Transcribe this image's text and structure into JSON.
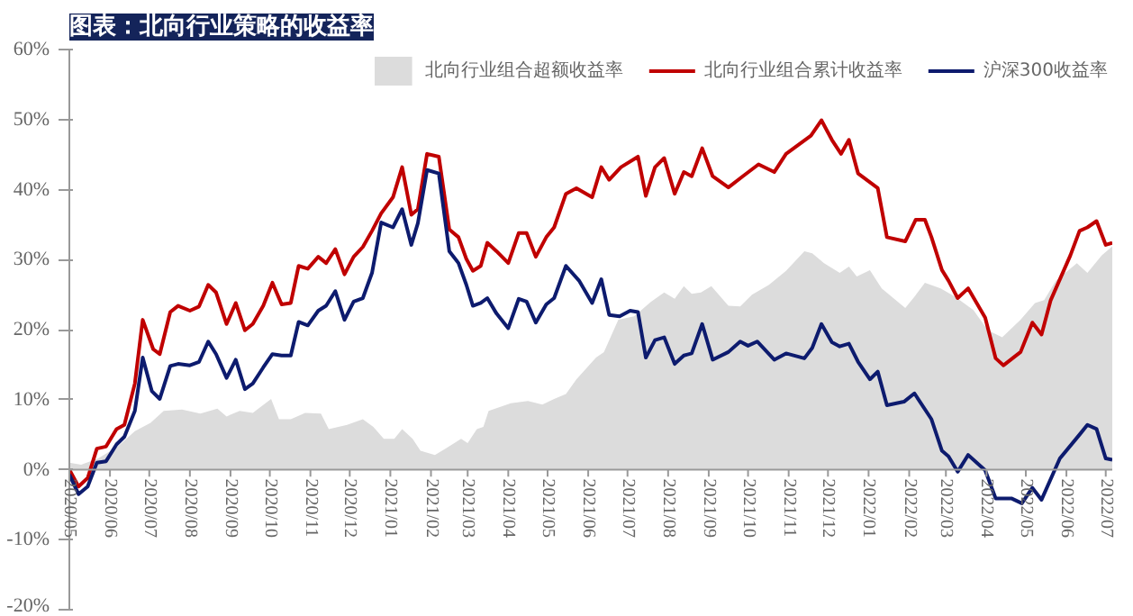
{
  "chart_data": {
    "type": "line",
    "title": "图表：北向行业策略的收益率",
    "xlim": [
      "2020-05-01",
      "2022-07-06"
    ],
    "xticks": [
      {
        "value": "2020-05",
        "label": "2020/05"
      },
      {
        "value": "2020-06",
        "label": "2020/06"
      },
      {
        "value": "2020-07",
        "label": "2020/07"
      },
      {
        "value": "2020-08",
        "label": "2020/08"
      },
      {
        "value": "2020-09",
        "label": "2020/09"
      },
      {
        "value": "2020-10",
        "label": "2020/10"
      },
      {
        "value": "2020-11",
        "label": "2020/11"
      },
      {
        "value": "2020-12",
        "label": "2020/12"
      },
      {
        "value": "2021-01",
        "label": "2021/01"
      },
      {
        "value": "2021-02",
        "label": "2021/02"
      },
      {
        "value": "2021-03",
        "label": "2021/03"
      },
      {
        "value": "2021-04",
        "label": "2021/04"
      },
      {
        "value": "2021-05",
        "label": "2021/05"
      },
      {
        "value": "2021-06",
        "label": "2021/06"
      },
      {
        "value": "2021-07",
        "label": "2021/07"
      },
      {
        "value": "2021-08",
        "label": "2021/08"
      },
      {
        "value": "2021-09",
        "label": "2021/09"
      },
      {
        "value": "2021-10",
        "label": "2021/10"
      },
      {
        "value": "2021-11",
        "label": "2021/11"
      },
      {
        "value": "2021-12",
        "label": "2021/12"
      },
      {
        "value": "2022-01",
        "label": "2022/01"
      },
      {
        "value": "2022-02",
        "label": "2022/02"
      },
      {
        "value": "2022-03",
        "label": "2022/03"
      },
      {
        "value": "2022-04",
        "label": "2022/04"
      },
      {
        "value": "2022-05",
        "label": "2022/05"
      },
      {
        "value": "2022-06",
        "label": "2022/06"
      },
      {
        "value": "2022-07",
        "label": "2022/07"
      }
    ],
    "ylim": [
      -20,
      60
    ],
    "yticks": [
      {
        "value": -20,
        "label": "-20%"
      },
      {
        "value": -10,
        "label": "-10%"
      },
      {
        "value": 0,
        "label": "0%"
      },
      {
        "value": 10,
        "label": "10%"
      },
      {
        "value": 20,
        "label": "20%"
      },
      {
        "value": 30,
        "label": "30%"
      },
      {
        "value": 40,
        "label": "40%"
      },
      {
        "value": 50,
        "label": "50%"
      },
      {
        "value": 60,
        "label": "60%"
      }
    ],
    "grid": false,
    "legend": "top",
    "line_style": "solid",
    "marker": "none",
    "series": [
      {
        "name": "北向行业组合超额收益率",
        "type": "area",
        "color": "#dcdcdc",
        "x": [
          "2020-05-01",
          "2020-05-10",
          "2020-05-23",
          "2020-06-07",
          "2020-06-20",
          "2020-07-02",
          "2020-07-12",
          "2020-07-26",
          "2020-08-09",
          "2020-08-22",
          "2020-08-29",
          "2020-09-08",
          "2020-09-18",
          "2020-10-02",
          "2020-10-08",
          "2020-10-17",
          "2020-10-28",
          "2020-11-09",
          "2020-11-15",
          "2020-11-29",
          "2020-12-11",
          "2020-12-19",
          "2020-12-27",
          "2021-01-04",
          "2021-01-10",
          "2021-01-18",
          "2021-01-24",
          "2021-02-04",
          "2021-02-12",
          "2021-02-24",
          "2021-03-01",
          "2021-03-08",
          "2021-03-13",
          "2021-03-17",
          "2021-04-03",
          "2021-04-16",
          "2021-04-27",
          "2021-05-06",
          "2021-05-15",
          "2021-05-23",
          "2021-06-07",
          "2021-06-13",
          "2021-06-24",
          "2021-07-06",
          "2021-07-19",
          "2021-07-29",
          "2021-08-06",
          "2021-08-13",
          "2021-08-19",
          "2021-08-26",
          "2021-09-03",
          "2021-09-16",
          "2021-09-25",
          "2021-10-04",
          "2021-10-17",
          "2021-10-30",
          "2021-11-13",
          "2021-11-19",
          "2021-11-28",
          "2021-12-10",
          "2021-12-17",
          "2021-12-23",
          "2022-01-02",
          "2022-01-11",
          "2022-01-29",
          "2022-02-05",
          "2022-02-13",
          "2022-02-25",
          "2022-03-08",
          "2022-03-22",
          "2022-04-02",
          "2022-04-13",
          "2022-04-27",
          "2022-05-08",
          "2022-05-15",
          "2022-05-24",
          "2022-06-09",
          "2022-06-17",
          "2022-06-28",
          "2022-07-06"
        ],
        "values": [
          1,
          0.7,
          1.6,
          3.3,
          5.5,
          6.7,
          8.4,
          8.6,
          8,
          8.7,
          7.6,
          8.4,
          8.1,
          10.1,
          7.2,
          7.2,
          8.1,
          8,
          5.8,
          6.4,
          7.2,
          6.1,
          4.4,
          4.4,
          5.8,
          4.4,
          2.7,
          2.1,
          3,
          4.4,
          3.8,
          5.8,
          6.1,
          8.4,
          9.5,
          9.8,
          9.3,
          10.1,
          10.8,
          12.9,
          16,
          16.8,
          21.4,
          21.9,
          24,
          25.3,
          24.4,
          26.2,
          25.1,
          25.3,
          26.2,
          23.4,
          23.3,
          25,
          26.4,
          28.4,
          31.2,
          30.9,
          29.5,
          28.1,
          29,
          27.6,
          28.5,
          25.9,
          23.1,
          24.7,
          26.7,
          25.9,
          24.7,
          22.8,
          19.9,
          18.9,
          21.4,
          23.8,
          24.2,
          27,
          29.5,
          28.1,
          30.6,
          31.9
        ]
      },
      {
        "name": "北向行业组合累计收益率",
        "color": "#c00000",
        "x": [
          "2020-05-01",
          "2020-05-08",
          "2020-05-15",
          "2020-05-22",
          "2020-05-29",
          "2020-06-06",
          "2020-06-12",
          "2020-06-20",
          "2020-06-26",
          "2020-07-04",
          "2020-07-09",
          "2020-07-17",
          "2020-07-23",
          "2020-08-01",
          "2020-08-08",
          "2020-08-15",
          "2020-08-21",
          "2020-08-29",
          "2020-09-05",
          "2020-09-12",
          "2020-09-18",
          "2020-09-26",
          "2020-10-03",
          "2020-10-10",
          "2020-10-17",
          "2020-10-23",
          "2020-10-30",
          "2020-11-07",
          "2020-11-13",
          "2020-11-20",
          "2020-11-27",
          "2020-12-04",
          "2020-12-11",
          "2020-12-18",
          "2020-12-25",
          "2021-01-03",
          "2021-01-10",
          "2021-01-17",
          "2021-01-22",
          "2021-01-29",
          "2021-02-07",
          "2021-02-15",
          "2021-02-22",
          "2021-02-28",
          "2021-03-05",
          "2021-03-11",
          "2021-03-16",
          "2021-03-23",
          "2021-04-01",
          "2021-04-09",
          "2021-04-15",
          "2021-04-22",
          "2021-04-30",
          "2021-05-06",
          "2021-05-15",
          "2021-05-23",
          "2021-06-04",
          "2021-06-11",
          "2021-06-17",
          "2021-06-26",
          "2021-07-09",
          "2021-07-15",
          "2021-07-22",
          "2021-07-29",
          "2021-08-06",
          "2021-08-13",
          "2021-08-19",
          "2021-08-27",
          "2021-09-04",
          "2021-09-16",
          "2021-09-27",
          "2021-10-09",
          "2021-10-21",
          "2021-10-30",
          "2021-11-18",
          "2021-11-26",
          "2021-12-04",
          "2021-12-11",
          "2021-12-17",
          "2021-12-24",
          "2022-01-08",
          "2022-01-15",
          "2022-01-29",
          "2022-02-06",
          "2022-02-13",
          "2022-02-18",
          "2022-02-26",
          "2022-03-03",
          "2022-03-10",
          "2022-03-18",
          "2022-03-31",
          "2022-04-08",
          "2022-04-14",
          "2022-04-27",
          "2022-05-06",
          "2022-05-13",
          "2022-05-20",
          "2022-06-04",
          "2022-06-11",
          "2022-06-17",
          "2022-06-24",
          "2022-07-01",
          "2022-07-06"
        ],
        "values": [
          0,
          -2.4,
          -1.2,
          3,
          3.3,
          5.8,
          6.4,
          12.3,
          21.4,
          17.2,
          16.5,
          22.5,
          23.4,
          22.7,
          23.3,
          26.4,
          25.3,
          20.8,
          23.8,
          19.9,
          20.8,
          23.4,
          26.7,
          23.6,
          23.8,
          29.1,
          28.7,
          30.4,
          29.5,
          31.5,
          27.9,
          30.4,
          31.8,
          34.1,
          36.6,
          38.9,
          43.2,
          36.4,
          37.2,
          45.1,
          44.7,
          34.3,
          33.2,
          30.1,
          28.4,
          29.1,
          32.4,
          31.2,
          29.5,
          33.8,
          33.8,
          30.4,
          33.2,
          34.6,
          39.4,
          40.2,
          38.9,
          43.2,
          41.4,
          43.2,
          44.7,
          39.1,
          43.2,
          44.5,
          39.4,
          42.5,
          41.9,
          45.9,
          41.9,
          40.3,
          41.9,
          43.6,
          42.5,
          45.1,
          47.7,
          49.9,
          47.1,
          45.1,
          47.1,
          42.3,
          40.2,
          33.2,
          32.6,
          35.7,
          35.7,
          33.2,
          28.5,
          27,
          24.5,
          25.9,
          21.7,
          15.9,
          14.9,
          16.8,
          21,
          19.3,
          24.2,
          30.6,
          34.1,
          34.6,
          35.5,
          32.1,
          32.4
        ]
      },
      {
        "name": "沪深300收益率",
        "color": "#0d1b6e",
        "x": [
          "2020-05-01",
          "2020-05-08",
          "2020-05-15",
          "2020-05-22",
          "2020-05-29",
          "2020-06-06",
          "2020-06-12",
          "2020-06-20",
          "2020-06-26",
          "2020-07-03",
          "2020-07-09",
          "2020-07-17",
          "2020-07-23",
          "2020-08-01",
          "2020-08-08",
          "2020-08-15",
          "2020-08-21",
          "2020-08-29",
          "2020-09-05",
          "2020-09-12",
          "2020-09-18",
          "2020-09-26",
          "2020-10-03",
          "2020-10-10",
          "2020-10-17",
          "2020-10-23",
          "2020-10-30",
          "2020-11-07",
          "2020-11-13",
          "2020-11-20",
          "2020-11-27",
          "2020-12-04",
          "2020-12-11",
          "2020-12-18",
          "2020-12-25",
          "2021-01-03",
          "2021-01-10",
          "2021-01-17",
          "2021-01-22",
          "2021-01-29",
          "2021-02-07",
          "2021-02-15",
          "2021-02-22",
          "2021-02-28",
          "2021-03-05",
          "2021-03-11",
          "2021-03-16",
          "2021-03-23",
          "2021-04-01",
          "2021-04-09",
          "2021-04-15",
          "2021-04-22",
          "2021-04-30",
          "2021-05-06",
          "2021-05-15",
          "2021-05-25",
          "2021-06-04",
          "2021-06-11",
          "2021-06-17",
          "2021-06-25",
          "2021-07-03",
          "2021-07-09",
          "2021-07-15",
          "2021-07-22",
          "2021-07-29",
          "2021-08-06",
          "2021-08-13",
          "2021-08-19",
          "2021-08-27",
          "2021-09-04",
          "2021-09-16",
          "2021-09-25",
          "2021-10-01",
          "2021-10-08",
          "2021-10-21",
          "2021-10-30",
          "2021-11-13",
          "2021-11-19",
          "2021-11-26",
          "2021-12-04",
          "2021-12-10",
          "2021-12-17",
          "2021-12-24",
          "2022-01-02",
          "2022-01-08",
          "2022-01-15",
          "2022-01-28",
          "2022-02-05",
          "2022-02-18",
          "2022-02-26",
          "2022-03-03",
          "2022-03-10",
          "2022-03-18",
          "2022-03-31",
          "2022-04-08",
          "2022-04-20",
          "2022-04-28",
          "2022-05-06",
          "2022-05-13",
          "2022-05-27",
          "2022-06-11",
          "2022-06-17",
          "2022-06-24",
          "2022-07-01",
          "2022-07-06"
        ],
        "values": [
          -0.7,
          -3.5,
          -2.4,
          1,
          1.2,
          3.6,
          4.7,
          8.4,
          16,
          11.2,
          10.1,
          14.8,
          15.1,
          14.9,
          15.4,
          18.3,
          16.5,
          13.1,
          15.7,
          11.5,
          12.3,
          14.6,
          16.5,
          16.3,
          16.3,
          21.1,
          20.6,
          22.7,
          23.4,
          25.5,
          21.4,
          24,
          24.5,
          28.1,
          35.3,
          34.6,
          37.2,
          32.1,
          35.2,
          42.8,
          42.3,
          31.2,
          29.5,
          26.4,
          23.4,
          23.8,
          24.5,
          22.3,
          20.2,
          24.4,
          24,
          21,
          23.6,
          24.5,
          29.1,
          27,
          23.8,
          27.2,
          22.1,
          21.9,
          22.7,
          22.5,
          16,
          18.5,
          18.9,
          15.1,
          16.3,
          16.6,
          20.8,
          15.7,
          16.8,
          18.3,
          17.7,
          18.3,
          15.7,
          16.6,
          15.9,
          17.4,
          20.8,
          18.2,
          17.6,
          18,
          15.4,
          12.9,
          14,
          9.2,
          9.7,
          10.9,
          7.2,
          2.7,
          1.9,
          -0.3,
          2.1,
          -0.1,
          -4.1,
          -4.1,
          -4.8,
          -2.6,
          -4.3,
          1.6,
          5,
          6.4,
          5.8,
          1.6,
          1.4
        ]
      }
    ]
  }
}
